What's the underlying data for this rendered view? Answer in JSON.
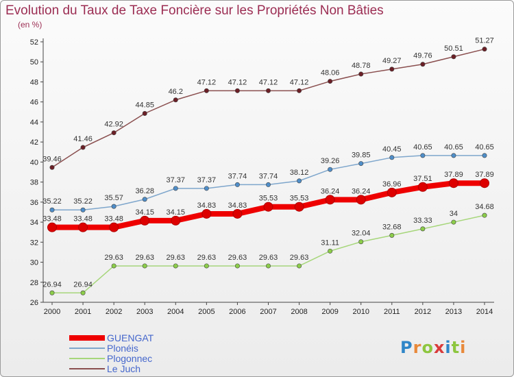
{
  "title": "Evolution du Taux de Taxe Foncière sur les Propriétés Non Bâties",
  "subtitle": "(en %)",
  "logo": {
    "letters": [
      "P",
      "r",
      "o",
      "x",
      "i",
      "t",
      "i"
    ],
    "colors": [
      "#2f86c8",
      "#e8893a",
      "#8dc63f",
      "#d93b3b",
      "#2f86c8",
      "#8dc63f",
      "#e8893a"
    ]
  },
  "chart_data": {
    "type": "line",
    "title": "Evolution du Taux de Taxe Foncière sur les Propriétés Non Bâties",
    "ylabel": "(en %)",
    "xlabel": "",
    "categories": [
      "2000",
      "2001",
      "2002",
      "2003",
      "2004",
      "2005",
      "2006",
      "2007",
      "2008",
      "2009",
      "2010",
      "2011",
      "2012",
      "2013",
      "2014"
    ],
    "ylim": [
      26,
      52
    ],
    "yticks": [
      26,
      28,
      30,
      32,
      34,
      36,
      38,
      40,
      42,
      44,
      46,
      48,
      50,
      52
    ],
    "grid": false,
    "legend_position": "bottom-left",
    "series": [
      {
        "name": "GUENGAT",
        "color": "#ee0000",
        "marker": "#dd0000",
        "width": 8,
        "values": [
          33.48,
          33.48,
          33.48,
          34.15,
          34.15,
          34.83,
          34.83,
          35.53,
          35.53,
          36.24,
          36.24,
          36.96,
          37.51,
          37.89,
          37.89
        ],
        "labels": [
          "33.48",
          "33.48",
          "33.48",
          "34.15",
          "34.15",
          "34.83",
          "34.83",
          "35.53",
          "35.53",
          "36.24",
          "36.24",
          "36.96",
          "37.51",
          "37.89",
          "37.89"
        ]
      },
      {
        "name": "Plonéis",
        "color": "#7ea6cc",
        "marker": "#4f8ec9",
        "width": 1.5,
        "values": [
          35.22,
          35.22,
          35.57,
          36.28,
          37.37,
          37.37,
          37.74,
          37.74,
          38.12,
          39.26,
          39.85,
          40.45,
          40.65,
          40.65,
          40.65
        ],
        "labels": [
          "35.22",
          "35.22",
          "35.57",
          "36.28",
          "37.37",
          "37.37",
          "37.74",
          "37.74",
          "38.12",
          "39.26",
          "39.85",
          "40.45",
          "40.65",
          "40.65",
          "40.65"
        ]
      },
      {
        "name": "Plogonnec",
        "color": "#a6d67a",
        "marker": "#8ccd4a",
        "width": 1.5,
        "values": [
          26.94,
          26.94,
          29.63,
          29.63,
          29.63,
          29.63,
          29.63,
          29.63,
          29.63,
          31.11,
          32.04,
          32.68,
          33.33,
          34,
          34.68
        ],
        "labels": [
          "26.94",
          "26.94",
          "29.63",
          "29.63",
          "29.63",
          "29.63",
          "29.63",
          "29.63",
          "29.63",
          "31.11",
          "32.04",
          "32.68",
          "33.33",
          "34",
          "34.68"
        ]
      },
      {
        "name": "Le Juch",
        "color": "#8a4f4f",
        "marker": "#6b1f26",
        "width": 1.5,
        "values": [
          39.46,
          41.46,
          42.92,
          44.85,
          46.2,
          47.12,
          47.12,
          47.12,
          47.12,
          48.06,
          48.78,
          49.27,
          49.76,
          50.51,
          51.27
        ],
        "labels": [
          "39.46",
          "41.46",
          "42.92",
          "44.85",
          "46.2",
          "47.12",
          "47.12",
          "47.12",
          "47.12",
          "48.06",
          "48.78",
          "49.27",
          "49.76",
          "50.51",
          "51.27"
        ]
      }
    ]
  }
}
